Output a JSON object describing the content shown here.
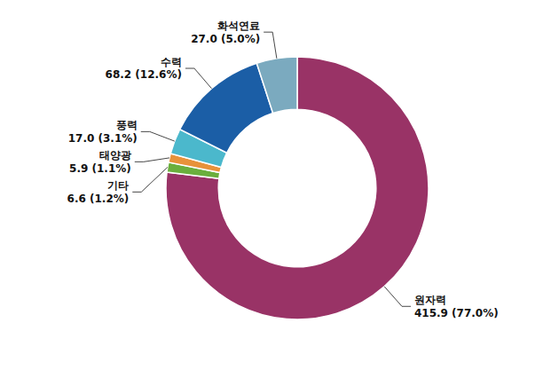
{
  "chart_data": {
    "type": "donut",
    "categories": [
      "원자력",
      "기타",
      "태양광",
      "풍력",
      "수력",
      "화석연료"
    ],
    "values": [
      415.9,
      6.6,
      5.9,
      17.0,
      68.2,
      27.0
    ],
    "value_labels": [
      "415.9 (77.0%)",
      "6.6 (1.2%)",
      "5.9 (1.1%)",
      "17.0 (3.1%)",
      "68.2 (12.6%)",
      "27.0 (5.0%)"
    ],
    "colors": [
      "#993366",
      "#6AAF3D",
      "#E8923A",
      "#4BB8CC",
      "#1B5EA6",
      "#7BAABF"
    ],
    "data_labels": true
  }
}
